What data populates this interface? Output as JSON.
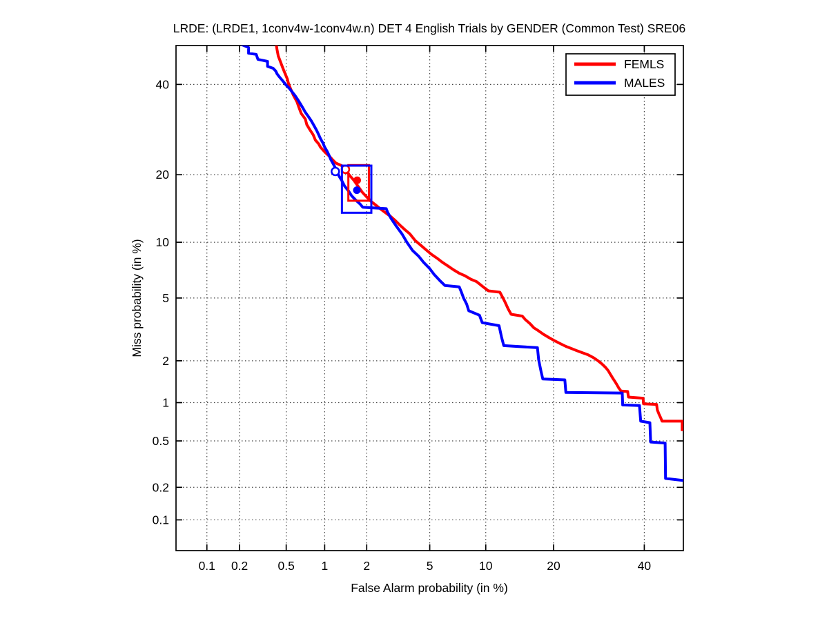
{
  "title": "LRDE: (LRDE1, 1conv4w-1conv4w.n) DET 4 English Trials by GENDER (Common Test) SRE06",
  "axes": {
    "x_label": "False Alarm probability (in %)",
    "y_label": "Miss probability (in %)",
    "tick_values": [
      0.1,
      0.2,
      0.5,
      1,
      2,
      5,
      10,
      20,
      40
    ],
    "xlim_pct": [
      0.05,
      50
    ],
    "ylim_pct": [
      0.05,
      50
    ],
    "scale": "normal-deviate-probit",
    "grid_style": "dotted",
    "grid_color": "#444444",
    "axis_color": "#000000"
  },
  "legend": {
    "position": "top-right",
    "items": [
      {
        "label": "FEMLS",
        "color": "#ff0000"
      },
      {
        "label": "MALES",
        "color": "#0000ff"
      }
    ]
  },
  "chart_data": {
    "type": "line",
    "subtype": "DET-curve",
    "title": "LRDE: (LRDE1, 1conv4w-1conv4w.n) DET 4 English Trials by GENDER (Common Test) SRE06",
    "xlabel": "False Alarm probability (in %)",
    "ylabel": "Miss probability (in %)",
    "x_units": "percent false alarm",
    "y_units": "percent miss",
    "axis_scale": "normal-deviate-probit",
    "xlim": [
      0.05,
      50
    ],
    "ylim": [
      0.05,
      50
    ],
    "x_ticks": [
      0.1,
      0.2,
      0.5,
      1,
      2,
      5,
      10,
      20,
      40
    ],
    "y_ticks": [
      0.1,
      0.2,
      0.5,
      1,
      2,
      5,
      10,
      20,
      40
    ],
    "grid": "dotted",
    "series": [
      {
        "name": "FEMLS",
        "color": "#ff0000",
        "points": [
          [
            0.41,
            51
          ],
          [
            0.42,
            49
          ],
          [
            0.43,
            47.3
          ],
          [
            0.45,
            45.7
          ],
          [
            0.47,
            44.1
          ],
          [
            0.49,
            42.7
          ],
          [
            0.51,
            41.4
          ],
          [
            0.52,
            40.4
          ],
          [
            0.54,
            39.1
          ],
          [
            0.57,
            37.4
          ],
          [
            0.61,
            35.7
          ],
          [
            0.63,
            34.5
          ],
          [
            0.66,
            32.9
          ],
          [
            0.71,
            31.6
          ],
          [
            0.73,
            30.3
          ],
          [
            0.77,
            29.2
          ],
          [
            0.82,
            28.0
          ],
          [
            0.85,
            26.9
          ],
          [
            0.9,
            26.1
          ],
          [
            0.93,
            25.4
          ],
          [
            0.98,
            24.7
          ],
          [
            1.02,
            24.2
          ],
          [
            1.08,
            23.6
          ],
          [
            1.14,
            22.9
          ],
          [
            1.21,
            22.2
          ],
          [
            1.28,
            21.9
          ],
          [
            1.36,
            21.6
          ],
          [
            1.44,
            20.7
          ],
          [
            1.53,
            19.8
          ],
          [
            1.63,
            19.0
          ],
          [
            1.74,
            18.0
          ],
          [
            1.86,
            17.0
          ],
          [
            1.98,
            16.3
          ],
          [
            2.14,
            15.5
          ],
          [
            2.31,
            14.9
          ],
          [
            2.49,
            14.3
          ],
          [
            2.67,
            13.8
          ],
          [
            2.87,
            13.3
          ],
          [
            3.09,
            12.7
          ],
          [
            3.3,
            12.1
          ],
          [
            3.55,
            11.5
          ],
          [
            3.8,
            11.0
          ],
          [
            4.1,
            10.2
          ],
          [
            4.4,
            9.7
          ],
          [
            4.8,
            9.1
          ],
          [
            5.1,
            8.7
          ],
          [
            5.5,
            8.3
          ],
          [
            5.9,
            7.9
          ],
          [
            6.4,
            7.5
          ],
          [
            6.8,
            7.2
          ],
          [
            7.3,
            6.9
          ],
          [
            7.8,
            6.7
          ],
          [
            8.4,
            6.4
          ],
          [
            9.0,
            6.2
          ],
          [
            9.7,
            5.8
          ],
          [
            10.3,
            5.5
          ],
          [
            11.7,
            5.4
          ],
          [
            12.1,
            5.0
          ],
          [
            12.4,
            4.7
          ],
          [
            12.8,
            4.3
          ],
          [
            13.2,
            4.0
          ],
          [
            14.8,
            3.9
          ],
          [
            15.3,
            3.7
          ],
          [
            16.0,
            3.5
          ],
          [
            16.6,
            3.3
          ],
          [
            17.4,
            3.15
          ],
          [
            18.2,
            3.0
          ],
          [
            19.2,
            2.85
          ],
          [
            20.2,
            2.72
          ],
          [
            21.2,
            2.61
          ],
          [
            22.3,
            2.5
          ],
          [
            23.4,
            2.42
          ],
          [
            24.5,
            2.34
          ],
          [
            25.6,
            2.27
          ],
          [
            26.8,
            2.2
          ],
          [
            28.0,
            2.1
          ],
          [
            29.0,
            2.0
          ],
          [
            29.9,
            1.9
          ],
          [
            30.7,
            1.8
          ],
          [
            31.3,
            1.71
          ],
          [
            31.8,
            1.61
          ],
          [
            32.3,
            1.52
          ],
          [
            32.8,
            1.44
          ],
          [
            33.3,
            1.36
          ],
          [
            33.8,
            1.28
          ],
          [
            34.3,
            1.22
          ],
          [
            35.9,
            1.21
          ],
          [
            36.1,
            1.1
          ],
          [
            39.7,
            1.08
          ],
          [
            39.8,
            0.98
          ],
          [
            43.1,
            0.97
          ],
          [
            43.3,
            0.88
          ],
          [
            43.7,
            0.82
          ],
          [
            44.2,
            0.76
          ],
          [
            44.5,
            0.72
          ],
          [
            49.7,
            0.72
          ],
          [
            49.7,
            0.6
          ]
        ],
        "open_circle": [
          1.42,
          21.0
        ],
        "filled_dot": [
          1.72,
          19.0
        ],
        "box": {
          "fa": [
            1.49,
            2.07
          ],
          "miss": [
            15.6,
            21.8
          ]
        }
      },
      {
        "name": "MALES",
        "color": "#0000ff",
        "points": [
          [
            0.18,
            51
          ],
          [
            0.24,
            49.5
          ],
          [
            0.24,
            48
          ],
          [
            0.28,
            47.7
          ],
          [
            0.29,
            46.4
          ],
          [
            0.35,
            45.9
          ],
          [
            0.35,
            44.6
          ],
          [
            0.39,
            44.1
          ],
          [
            0.41,
            43.4
          ],
          [
            0.42,
            42.7
          ],
          [
            0.44,
            41.9
          ],
          [
            0.46,
            41.2
          ],
          [
            0.48,
            40.5
          ],
          [
            0.5,
            39.8
          ],
          [
            0.53,
            39.0
          ],
          [
            0.56,
            38.1
          ],
          [
            0.59,
            37.2
          ],
          [
            0.62,
            36.2
          ],
          [
            0.65,
            35.2
          ],
          [
            0.68,
            34.2
          ],
          [
            0.71,
            33.2
          ],
          [
            0.75,
            32.2
          ],
          [
            0.79,
            31.2
          ],
          [
            0.83,
            30.1
          ],
          [
            0.87,
            29.0
          ],
          [
            0.9,
            28.1
          ],
          [
            0.93,
            27.2
          ],
          [
            0.97,
            26.3
          ],
          [
            1.0,
            25.4
          ],
          [
            1.04,
            24.6
          ],
          [
            1.08,
            23.7
          ],
          [
            1.11,
            22.9
          ],
          [
            1.16,
            22.0
          ],
          [
            1.2,
            21.3
          ],
          [
            1.24,
            20.5
          ],
          [
            1.28,
            19.7
          ],
          [
            1.34,
            18.9
          ],
          [
            1.4,
            18.0
          ],
          [
            1.49,
            17.2
          ],
          [
            1.57,
            16.4
          ],
          [
            1.68,
            15.7
          ],
          [
            1.8,
            15.1
          ],
          [
            1.88,
            14.6
          ],
          [
            2.7,
            14.4
          ],
          [
            2.75,
            13.9
          ],
          [
            2.9,
            13.0
          ],
          [
            3.1,
            12.1
          ],
          [
            3.4,
            11.0
          ],
          [
            3.65,
            10.0
          ],
          [
            3.95,
            9.1
          ],
          [
            4.3,
            8.5
          ],
          [
            4.6,
            7.9
          ],
          [
            5.0,
            7.3
          ],
          [
            5.3,
            6.8
          ],
          [
            5.7,
            6.3
          ],
          [
            6.1,
            5.9
          ],
          [
            7.3,
            5.8
          ],
          [
            7.5,
            5.4
          ],
          [
            7.7,
            5.0
          ],
          [
            8.0,
            4.6
          ],
          [
            8.2,
            4.2
          ],
          [
            9.3,
            3.95
          ],
          [
            9.6,
            3.55
          ],
          [
            11.6,
            3.4
          ],
          [
            11.9,
            2.9
          ],
          [
            12.2,
            2.53
          ],
          [
            17.2,
            2.45
          ],
          [
            17.4,
            2.03
          ],
          [
            17.8,
            1.69
          ],
          [
            18.1,
            1.49
          ],
          [
            22.1,
            1.47
          ],
          [
            22.3,
            1.19
          ],
          [
            34.6,
            1.18
          ],
          [
            34.7,
            0.96
          ],
          [
            38.8,
            0.95
          ],
          [
            39.1,
            0.72
          ],
          [
            41.4,
            0.7
          ],
          [
            41.6,
            0.49
          ],
          [
            45.3,
            0.48
          ],
          [
            45.4,
            0.24
          ],
          [
            50,
            0.23
          ]
        ],
        "open_circle": [
          1.2,
          20.6
        ],
        "filled_dot": [
          1.71,
          17.3
        ],
        "box": {
          "fa": [
            1.34,
            2.15
          ],
          "miss": [
            13.8,
            21.7
          ]
        }
      }
    ]
  }
}
